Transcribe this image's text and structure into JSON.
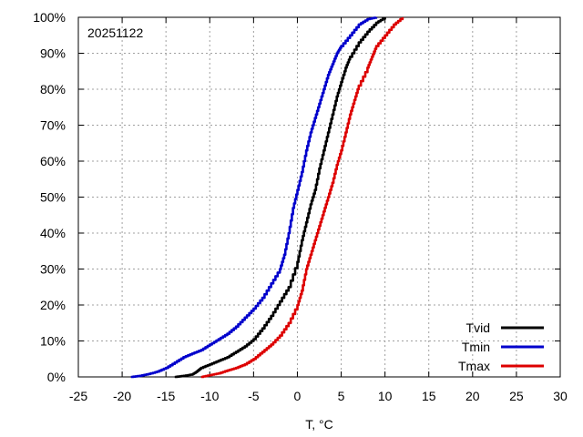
{
  "chart_data": {
    "type": "line",
    "annotation": "20251122",
    "xlabel": "T, °C",
    "ylabel": "",
    "xlim": [
      -25,
      30
    ],
    "ylim": [
      0,
      100
    ],
    "x_ticks": [
      -25,
      -20,
      -15,
      -10,
      -5,
      0,
      5,
      10,
      15,
      20,
      25,
      30
    ],
    "y_ticks": [
      0,
      10,
      20,
      30,
      40,
      50,
      60,
      70,
      80,
      90,
      100
    ],
    "y_tick_labels": [
      "0%",
      "10%",
      "20%",
      "30%",
      "40%",
      "50%",
      "60%",
      "70%",
      "80%",
      "90%",
      "100%"
    ],
    "grid": true,
    "legend_position": "bottom-right",
    "series": [
      {
        "name": "Tvid",
        "color": "#000000",
        "points": [
          [
            -14,
            0
          ],
          [
            -13,
            0.3
          ],
          [
            -12,
            0.7
          ],
          [
            -11.5,
            1.5
          ],
          [
            -11,
            2.5
          ],
          [
            -10,
            3.5
          ],
          [
            -9,
            4.5
          ],
          [
            -8,
            5.5
          ],
          [
            -7,
            7
          ],
          [
            -6,
            8.5
          ],
          [
            -5,
            10.5
          ],
          [
            -4,
            13.5
          ],
          [
            -3,
            17
          ],
          [
            -2,
            21
          ],
          [
            -1,
            25
          ],
          [
            0,
            32
          ],
          [
            0.5,
            38
          ],
          [
            1,
            43
          ],
          [
            1.5,
            48
          ],
          [
            2,
            52
          ],
          [
            2.5,
            58
          ],
          [
            3,
            63
          ],
          [
            3.5,
            68
          ],
          [
            4,
            73
          ],
          [
            4.5,
            78
          ],
          [
            5,
            82
          ],
          [
            5.5,
            86
          ],
          [
            6,
            89
          ],
          [
            7,
            93
          ],
          [
            8,
            96
          ],
          [
            9,
            98.5
          ],
          [
            10,
            100
          ]
        ]
      },
      {
        "name": "Tmin",
        "color": "#0000cc",
        "points": [
          [
            -19,
            0
          ],
          [
            -18,
            0.3
          ],
          [
            -17,
            0.8
          ],
          [
            -16,
            1.5
          ],
          [
            -15,
            2.5
          ],
          [
            -14,
            4
          ],
          [
            -13,
            5.5
          ],
          [
            -12,
            6.5
          ],
          [
            -11,
            7.5
          ],
          [
            -10,
            9
          ],
          [
            -9,
            10.5
          ],
          [
            -8,
            12
          ],
          [
            -7,
            14
          ],
          [
            -6,
            16.5
          ],
          [
            -5,
            19
          ],
          [
            -4,
            22
          ],
          [
            -3,
            26
          ],
          [
            -2,
            30
          ],
          [
            -1.5,
            34
          ],
          [
            -1,
            40
          ],
          [
            -0.5,
            47
          ],
          [
            0,
            52
          ],
          [
            0.5,
            57
          ],
          [
            1,
            63
          ],
          [
            1.5,
            68
          ],
          [
            2,
            72
          ],
          [
            2.5,
            76
          ],
          [
            3,
            80
          ],
          [
            3.5,
            84
          ],
          [
            4,
            87
          ],
          [
            4.5,
            90
          ],
          [
            5,
            92
          ],
          [
            6,
            95
          ],
          [
            7,
            98
          ],
          [
            8,
            99.5
          ],
          [
            9,
            100
          ]
        ]
      },
      {
        "name": "Tmax",
        "color": "#dd0000",
        "points": [
          [
            -11,
            0
          ],
          [
            -10,
            0.5
          ],
          [
            -9,
            1
          ],
          [
            -8,
            1.8
          ],
          [
            -7,
            2.5
          ],
          [
            -6,
            3.5
          ],
          [
            -5,
            5
          ],
          [
            -4,
            7
          ],
          [
            -3,
            9
          ],
          [
            -2,
            11.5
          ],
          [
            -1,
            15
          ],
          [
            0,
            20
          ],
          [
            0.5,
            24
          ],
          [
            1,
            30
          ],
          [
            1.5,
            34
          ],
          [
            2,
            38
          ],
          [
            2.5,
            42
          ],
          [
            3,
            46
          ],
          [
            3.5,
            50
          ],
          [
            4,
            54
          ],
          [
            4.5,
            59
          ],
          [
            5,
            63
          ],
          [
            5.5,
            68
          ],
          [
            6,
            73
          ],
          [
            6.5,
            77
          ],
          [
            7,
            81
          ],
          [
            8,
            86
          ],
          [
            8.5,
            89
          ],
          [
            9,
            92
          ],
          [
            10,
            95
          ],
          [
            11,
            98
          ],
          [
            12,
            100
          ]
        ]
      }
    ]
  }
}
